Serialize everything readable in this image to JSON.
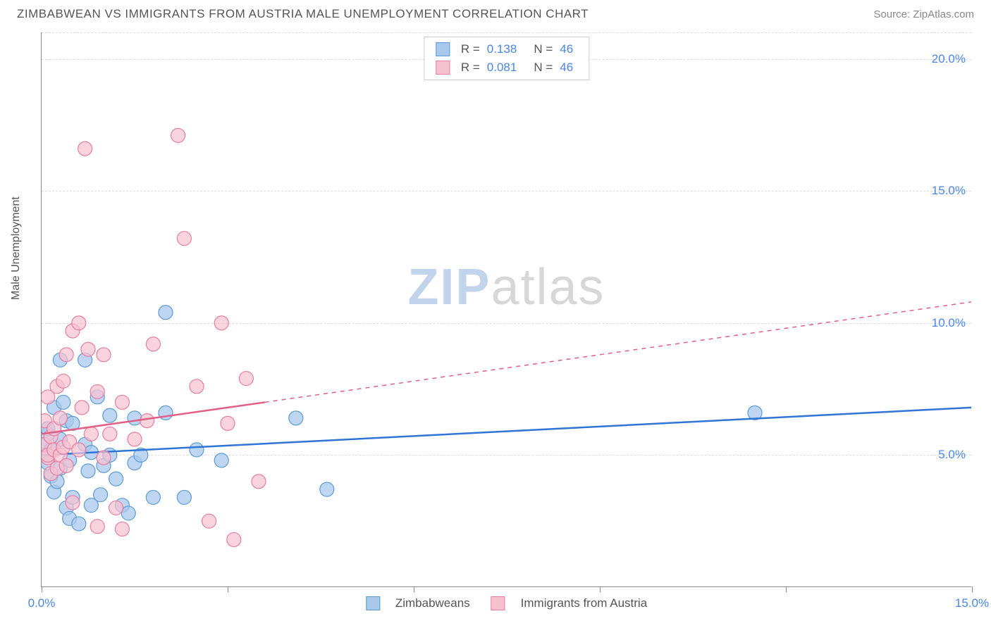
{
  "title": "ZIMBABWEAN VS IMMIGRANTS FROM AUSTRIA MALE UNEMPLOYMENT CORRELATION CHART",
  "source": "Source: ZipAtlas.com",
  "ylabel": "Male Unemployment",
  "watermark_zip": "ZIP",
  "watermark_atlas": "atlas",
  "chart": {
    "type": "scatter",
    "background_color": "#ffffff",
    "grid_color": "#dddddd",
    "axis_color": "#888888",
    "xlim": [
      0,
      15
    ],
    "ylim": [
      0,
      21
    ],
    "xticks": [
      0,
      3,
      6,
      9,
      12,
      15
    ],
    "xtick_labels": [
      "0.0%",
      "",
      "",
      "",
      "",
      "15.0%"
    ],
    "yticks": [
      5,
      10,
      15,
      20
    ],
    "ytick_labels": [
      "5.0%",
      "10.0%",
      "15.0%",
      "20.0%"
    ],
    "series": [
      {
        "name": "Zimbabweans",
        "color_fill": "#a8c8ec",
        "color_stroke": "#5b9bd5",
        "marker_radius": 10,
        "marker_opacity": 0.75,
        "line_color": "#2e75d6",
        "line_width": 2.5,
        "R": "0.138",
        "N": "46",
        "trend": {
          "x1": 0,
          "y1": 5.0,
          "x2": 15,
          "y2": 6.8,
          "solid_xmax": 15
        },
        "points": [
          [
            0.05,
            5.0
          ],
          [
            0.05,
            5.4
          ],
          [
            0.1,
            5.8
          ],
          [
            0.1,
            6.0
          ],
          [
            0.1,
            4.7
          ],
          [
            0.15,
            5.2
          ],
          [
            0.15,
            4.2
          ],
          [
            0.2,
            6.8
          ],
          [
            0.2,
            3.6
          ],
          [
            0.25,
            4.0
          ],
          [
            0.3,
            4.5
          ],
          [
            0.3,
            8.6
          ],
          [
            0.3,
            5.6
          ],
          [
            0.35,
            7.0
          ],
          [
            0.4,
            3.0
          ],
          [
            0.4,
            6.3
          ],
          [
            0.45,
            4.8
          ],
          [
            0.45,
            2.6
          ],
          [
            0.5,
            3.4
          ],
          [
            0.5,
            6.2
          ],
          [
            0.6,
            2.4
          ],
          [
            0.7,
            8.6
          ],
          [
            0.7,
            5.4
          ],
          [
            0.75,
            4.4
          ],
          [
            0.8,
            5.1
          ],
          [
            0.8,
            3.1
          ],
          [
            0.9,
            7.2
          ],
          [
            0.95,
            3.5
          ],
          [
            1.0,
            4.6
          ],
          [
            1.1,
            5.0
          ],
          [
            1.1,
            6.5
          ],
          [
            1.2,
            4.1
          ],
          [
            1.3,
            3.1
          ],
          [
            1.4,
            2.8
          ],
          [
            1.5,
            6.4
          ],
          [
            1.5,
            4.7
          ],
          [
            1.6,
            5.0
          ],
          [
            1.8,
            3.4
          ],
          [
            2.0,
            10.4
          ],
          [
            2.0,
            6.6
          ],
          [
            2.3,
            3.4
          ],
          [
            2.5,
            5.2
          ],
          [
            2.9,
            4.8
          ],
          [
            4.1,
            6.4
          ],
          [
            4.6,
            3.7
          ],
          [
            11.5,
            6.6
          ]
        ]
      },
      {
        "name": "Immigrants from Austria",
        "color_fill": "#f6c2d0",
        "color_stroke": "#e87ca0",
        "marker_radius": 10,
        "marker_opacity": 0.7,
        "line_color": "#e26088",
        "line_width": 2.5,
        "R": "0.081",
        "N": "46",
        "trend": {
          "x1": 0,
          "y1": 5.8,
          "x2": 15,
          "y2": 10.8,
          "solid_xmax": 3.6
        },
        "points": [
          [
            0.05,
            5.4
          ],
          [
            0.05,
            6.3
          ],
          [
            0.1,
            4.9
          ],
          [
            0.1,
            7.2
          ],
          [
            0.1,
            5.0
          ],
          [
            0.15,
            5.7
          ],
          [
            0.15,
            4.3
          ],
          [
            0.2,
            6.0
          ],
          [
            0.2,
            5.2
          ],
          [
            0.25,
            7.6
          ],
          [
            0.25,
            4.5
          ],
          [
            0.3,
            5.0
          ],
          [
            0.3,
            6.4
          ],
          [
            0.35,
            5.3
          ],
          [
            0.35,
            7.8
          ],
          [
            0.4,
            8.8
          ],
          [
            0.4,
            4.6
          ],
          [
            0.45,
            5.5
          ],
          [
            0.5,
            9.7
          ],
          [
            0.5,
            3.2
          ],
          [
            0.6,
            5.2
          ],
          [
            0.6,
            10.0
          ],
          [
            0.65,
            6.8
          ],
          [
            0.7,
            16.6
          ],
          [
            0.75,
            9.0
          ],
          [
            0.8,
            5.8
          ],
          [
            0.9,
            7.4
          ],
          [
            0.9,
            2.3
          ],
          [
            1.0,
            8.8
          ],
          [
            1.0,
            4.9
          ],
          [
            1.1,
            5.8
          ],
          [
            1.2,
            3.0
          ],
          [
            1.3,
            7.0
          ],
          [
            1.3,
            2.2
          ],
          [
            1.5,
            5.6
          ],
          [
            1.7,
            6.3
          ],
          [
            1.8,
            9.2
          ],
          [
            2.2,
            17.1
          ],
          [
            2.3,
            13.2
          ],
          [
            2.5,
            7.6
          ],
          [
            2.7,
            2.5
          ],
          [
            2.9,
            10.0
          ],
          [
            3.0,
            6.2
          ],
          [
            3.1,
            1.8
          ],
          [
            3.3,
            7.9
          ],
          [
            3.5,
            4.0
          ]
        ]
      }
    ],
    "legend_bottom": [
      {
        "swatch_fill": "#a8c8ec",
        "swatch_stroke": "#5b9bd5",
        "label": "Zimbabweans"
      },
      {
        "swatch_fill": "#f6c2d0",
        "swatch_stroke": "#e87ca0",
        "label": "Immigrants from Austria"
      }
    ]
  }
}
